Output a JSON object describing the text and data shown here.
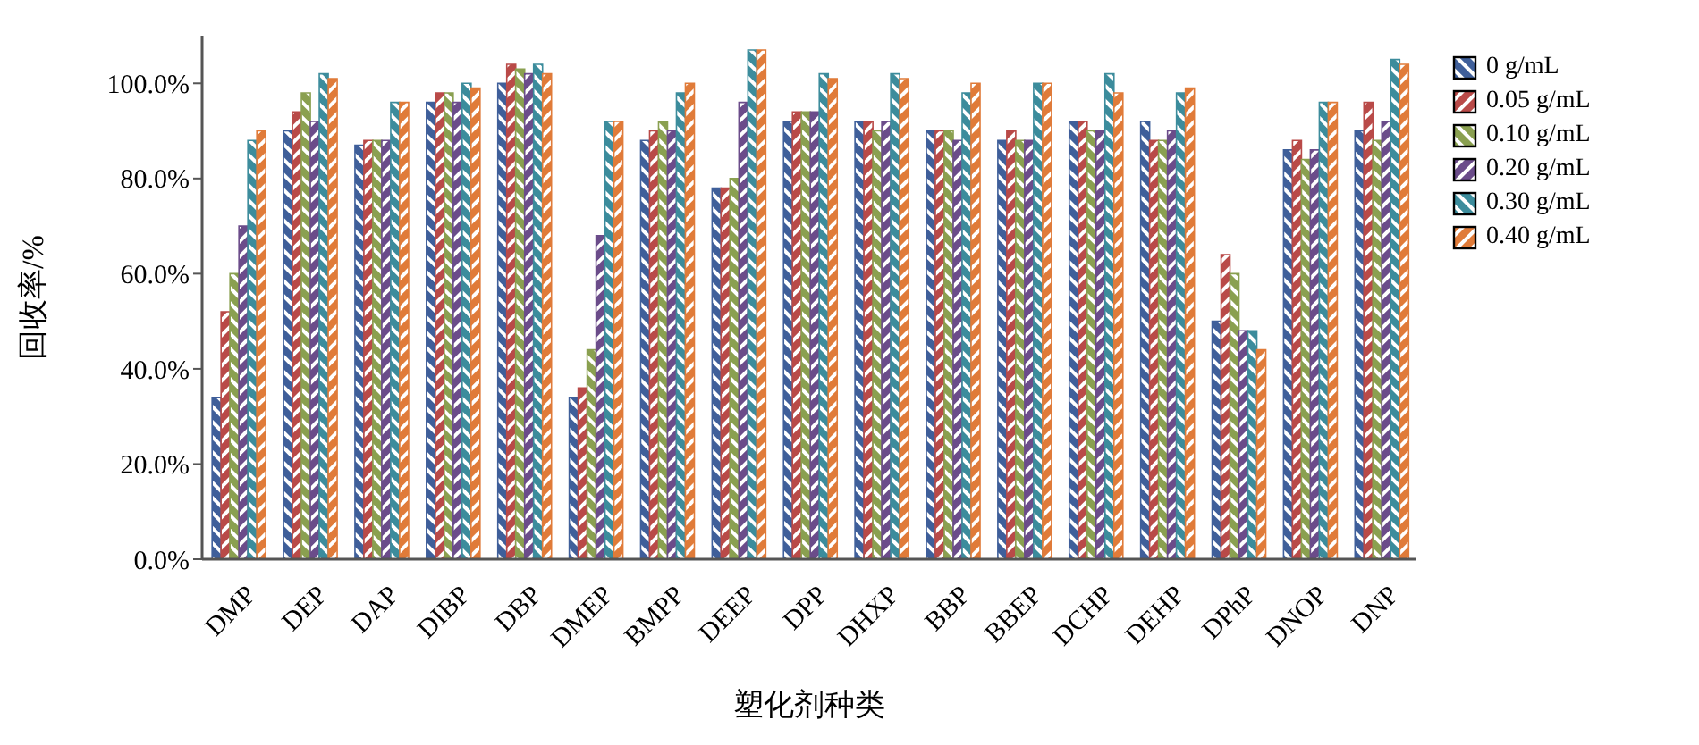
{
  "chart_data": {
    "type": "bar",
    "xlabel": "塑化剂种类",
    "ylabel": "回收率/%",
    "categories": [
      "DMP",
      "DEP",
      "DAP",
      "DIBP",
      "DBP",
      "DMEP",
      "BMPP",
      "DEEP",
      "DPP",
      "DHXP",
      "BBP",
      "BBEP",
      "DCHP",
      "DEHP",
      "DPhP",
      "DNOP",
      "DNP"
    ],
    "series": [
      {
        "name": "0 g/mL",
        "color": "#3f5f9a",
        "values": [
          34,
          90,
          87,
          96,
          100,
          34,
          88,
          78,
          92,
          92,
          90,
          88,
          92,
          92,
          50,
          86,
          90
        ]
      },
      {
        "name": "0.05 g/mL",
        "color": "#b94a48",
        "values": [
          52,
          94,
          88,
          98,
          104,
          36,
          90,
          78,
          94,
          92,
          90,
          90,
          92,
          88,
          64,
          88,
          96
        ]
      },
      {
        "name": "0.10 g/mL",
        "color": "#8aa050",
        "values": [
          60,
          98,
          88,
          98,
          103,
          44,
          92,
          80,
          94,
          90,
          90,
          88,
          90,
          88,
          60,
          84,
          88
        ]
      },
      {
        "name": "0.20 g/mL",
        "color": "#6b4c8a",
        "values": [
          70,
          92,
          88,
          96,
          102,
          68,
          90,
          96,
          94,
          92,
          88,
          88,
          90,
          90,
          48,
          86,
          92
        ]
      },
      {
        "name": "0.30 g/mL",
        "color": "#3c8c9c",
        "values": [
          88,
          102,
          96,
          100,
          104,
          92,
          98,
          107,
          102,
          102,
          98,
          100,
          102,
          98,
          48,
          96,
          105
        ]
      },
      {
        "name": "0.40 g/mL",
        "color": "#e07b39",
        "values": [
          90,
          101,
          96,
          99,
          102,
          92,
          100,
          107,
          101,
          101,
          100,
          100,
          98,
          99,
          44,
          96,
          104
        ]
      }
    ],
    "ylim": [
      0,
      110
    ],
    "yticks": [
      {
        "value": 0,
        "label": "0.0%"
      },
      {
        "value": 20,
        "label": "20.0%"
      },
      {
        "value": 40,
        "label": "40.0%"
      },
      {
        "value": 60,
        "label": "60.0%"
      },
      {
        "value": 80,
        "label": "80.0%"
      },
      {
        "value": 100,
        "label": "100.0%"
      }
    ],
    "grid": false,
    "legend": "top right"
  }
}
